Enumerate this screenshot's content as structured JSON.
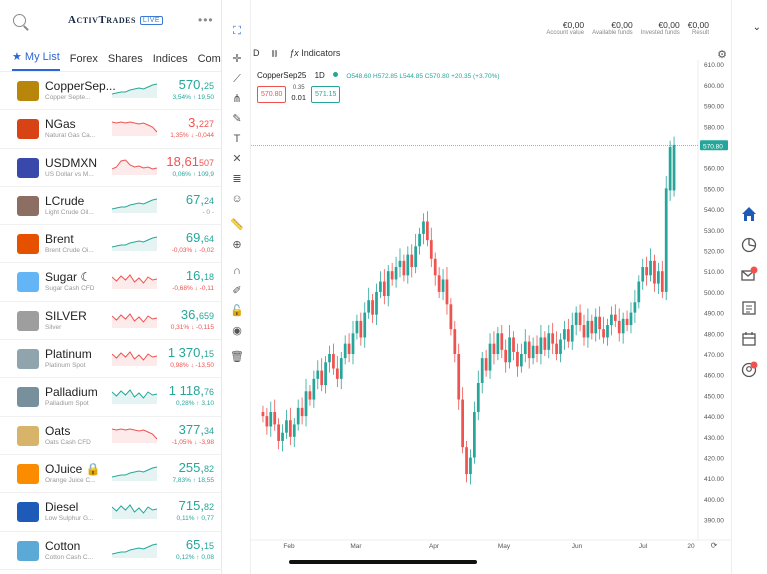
{
  "header": {
    "logo": "ActivTrades",
    "live_badge": "LIVE"
  },
  "tabs": [
    "★ My List",
    "Forex",
    "Shares",
    "Indices",
    "Commo"
  ],
  "watchlist": [
    {
      "name": "CopperSep...",
      "sub": "Copper Septe...",
      "price_main": "570,",
      "price_small": "25",
      "change": "3,54% ↑ 19,50",
      "dir": "up",
      "icon": "gold-bar-icon",
      "icon_color": "#b8860b",
      "trend": "up"
    },
    {
      "name": "NGas",
      "sub": "Natural Gas Ca...",
      "price_main": "3,",
      "price_small": "227",
      "change": "1,35% ↓ -0,044",
      "dir": "down",
      "icon": "gas-can-icon",
      "icon_color": "#d84315",
      "trend": "down"
    },
    {
      "name": "USDMXN",
      "sub": "US Dollar vs M...",
      "price_main": "18,61",
      "price_small": "507",
      "change": "0,06% ↑ 109,9",
      "dir": "down",
      "icon": "flag-icon",
      "icon_color": "#3949ab",
      "trend": "flat"
    },
    {
      "name": "LCrude",
      "sub": "Light Crude Oil...",
      "price_main": "67,",
      "price_small": "24",
      "change": "- 0 -",
      "dir": "up",
      "icon": "oil-barrel-icon",
      "icon_color": "#8d6e63",
      "trend": "up"
    },
    {
      "name": "Brent",
      "sub": "Brent Crude Oi...",
      "price_main": "69,",
      "price_small": "64",
      "change": "-0,03% ↓ -0,02",
      "dir": "up",
      "icon": "oil-barrel-icon",
      "icon_color": "#e65100",
      "trend": "up"
    },
    {
      "name": "Sugar ☾",
      "sub": "Sugar Cash CFD",
      "price_main": "16,",
      "price_small": "18",
      "change": "-0,68% ↓ -0,11",
      "dir": "up",
      "icon": "sugar-cubes-icon",
      "icon_color": "#64b5f6",
      "trend": "choppy"
    },
    {
      "name": "SILVER",
      "sub": "Silver",
      "price_main": "36,",
      "price_small": "659",
      "change": "0,31% ↓ -0,115",
      "dir": "up",
      "icon": "silver-bar-icon",
      "icon_color": "#9e9e9e",
      "trend": "choppy"
    },
    {
      "name": "Platinum",
      "sub": "Platinum Spot",
      "price_main": "1 370,",
      "price_small": "15",
      "change": "0,98% ↓ -13,50",
      "dir": "up",
      "icon": "platinum-bar-icon",
      "icon_color": "#90a4ae",
      "trend": "choppy"
    },
    {
      "name": "Palladium",
      "sub": "Palladium Spot",
      "price_main": "1 118,",
      "price_small": "76",
      "change": "0,28% ↑ 3,10",
      "dir": "up",
      "icon": "palladium-bar-icon",
      "icon_color": "#78909c",
      "trend": "choppy"
    },
    {
      "name": "Oats",
      "sub": "Oats Cash CFD",
      "price_main": "377,",
      "price_small": "34",
      "change": "-1,05% ↓ -3,98",
      "dir": "up",
      "icon": "oats-icon",
      "icon_color": "#d7b46a",
      "trend": "down"
    },
    {
      "name": "OJuice 🔒",
      "sub": "Orange Juice C...",
      "price_main": "255,",
      "price_small": "82",
      "change": "7,83% ↑ 18,55",
      "dir": "up",
      "icon": "orange-icon",
      "icon_color": "#fb8c00",
      "trend": "up"
    },
    {
      "name": "Diesel",
      "sub": "Low Sulphur G...",
      "price_main": "715,",
      "price_small": "82",
      "change": "0,11% ↑ 0,77",
      "dir": "up",
      "icon": "jerrycan-icon",
      "icon_color": "#1e5bb8",
      "trend": "choppy"
    },
    {
      "name": "Cotton",
      "sub": "Cotton Cash C...",
      "price_main": "65,",
      "price_small": "15",
      "change": "0,12% ↑ 0,08",
      "dir": "up",
      "icon": "cotton-icon",
      "icon_color": "#5aa9d6",
      "trend": "up"
    }
  ],
  "account": [
    {
      "value": "€0,00",
      "label": "Account value"
    },
    {
      "value": "€0,00",
      "label": "Available funds"
    },
    {
      "value": "€0,00",
      "label": "Invested funds"
    },
    {
      "value": "€0,00",
      "label": "Result"
    }
  ],
  "toolbar": {
    "timeframe": "D",
    "chart_type_icon": "candles-icon",
    "indicators_label": "Indicators"
  },
  "legend": {
    "symbol": "CopperSep25",
    "timeframe": "1D",
    "ohlc": "O548.60 H572.85 L544.85 C570.80 +20.35 (+3.70%)"
  },
  "trade": {
    "sell": "570.80",
    "spread_top": "0.35",
    "spread": "0.01",
    "buy": "571.15"
  },
  "colors": {
    "up": "#26a69a",
    "down": "#ef5350",
    "accent": "#2c66d3"
  },
  "chart_data": {
    "type": "candlestick",
    "symbol": "CopperSep25",
    "last_price_label": "570.80",
    "y_ticks": [
      610,
      600,
      590,
      580,
      570,
      560,
      550,
      540,
      530,
      520,
      510,
      500,
      490,
      480,
      470,
      460,
      450,
      440,
      430,
      420,
      410,
      400,
      390
    ],
    "y_tick_labels": [
      "610.00",
      "600.00",
      "590.00",
      "580.00",
      "570.00",
      "560.00",
      "550.00",
      "540.00",
      "530.00",
      "520.00",
      "510.00",
      "500.00",
      "490.00",
      "480.00",
      "470.00",
      "460.00",
      "450.00",
      "440.00",
      "430.00",
      "420.00",
      "410.00",
      "400.00",
      "390.00"
    ],
    "x_tick_labels": [
      "Feb",
      "Mar",
      "Apr",
      "May",
      "Jun",
      "Jul",
      "20"
    ],
    "ylim": [
      385,
      612
    ],
    "closes": [
      440,
      435,
      442,
      436,
      428,
      432,
      438,
      430,
      436,
      444,
      440,
      452,
      448,
      458,
      462,
      455,
      466,
      470,
      463,
      458,
      468,
      475,
      470,
      480,
      486,
      478,
      490,
      496,
      489,
      500,
      505,
      498,
      510,
      506,
      512,
      515,
      508,
      518,
      512,
      522,
      528,
      534,
      525,
      516,
      508,
      500,
      506,
      494,
      482,
      470,
      448,
      425,
      412,
      420,
      442,
      456,
      468,
      462,
      475,
      470,
      480,
      472,
      466,
      478,
      471,
      464,
      470,
      476,
      468,
      474,
      470,
      478,
      472,
      480,
      475,
      470,
      477,
      482,
      476,
      484,
      490,
      484,
      478,
      486,
      480,
      488,
      482,
      478,
      484,
      489,
      486,
      480,
      487,
      484,
      490,
      495,
      505,
      512,
      508,
      515,
      504,
      510,
      500,
      550,
      570,
      571
    ],
    "opens": [
      442,
      440,
      435,
      442,
      436,
      428,
      432,
      438,
      430,
      436,
      444,
      440,
      452,
      448,
      458,
      462,
      455,
      466,
      470,
      463,
      458,
      468,
      475,
      470,
      480,
      486,
      478,
      490,
      496,
      489,
      500,
      505,
      498,
      510,
      506,
      512,
      515,
      508,
      518,
      512,
      522,
      528,
      534,
      525,
      516,
      508,
      500,
      506,
      494,
      482,
      470,
      448,
      425,
      412,
      420,
      442,
      456,
      468,
      462,
      475,
      470,
      480,
      472,
      466,
      478,
      471,
      464,
      470,
      476,
      468,
      474,
      470,
      478,
      472,
      480,
      475,
      470,
      477,
      482,
      476,
      484,
      490,
      484,
      478,
      486,
      480,
      488,
      482,
      478,
      484,
      489,
      486,
      480,
      487,
      484,
      490,
      495,
      505,
      512,
      508,
      515,
      504,
      510,
      500,
      549,
      549
    ]
  },
  "side_rail": [
    "home-icon",
    "portfolio-pie-icon",
    "inbox-icon",
    "news-icon",
    "calendar-icon",
    "profile-icon"
  ]
}
